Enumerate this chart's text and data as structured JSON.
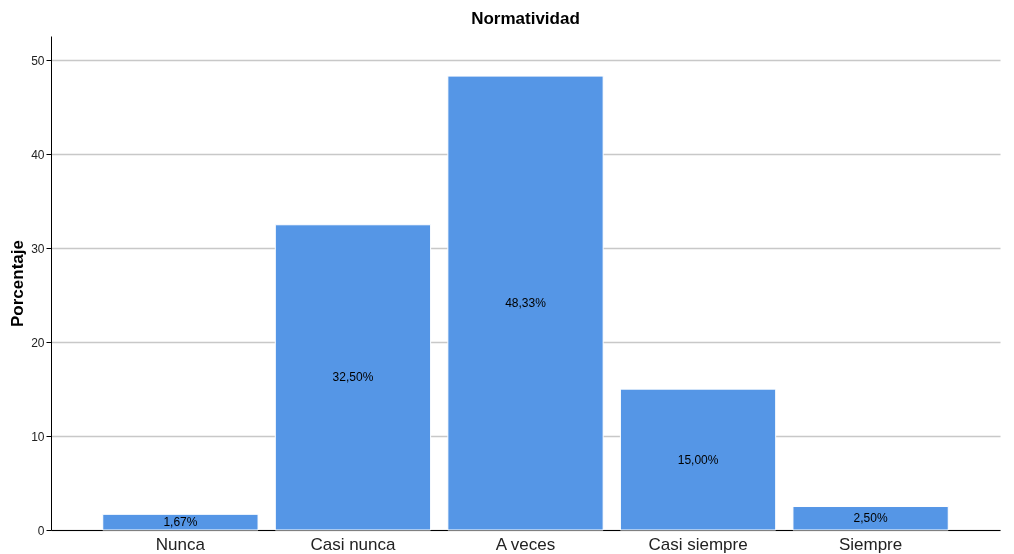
{
  "chart_data": {
    "type": "bar",
    "title": "Normatividad",
    "ylabel": "Porcentaje",
    "categories": [
      "Nunca",
      "Casi nunca",
      "A veces",
      "Casi siempre",
      "Siempre"
    ],
    "values": [
      1.67,
      32.5,
      48.33,
      15,
      2.5
    ],
    "value_labels": [
      "1,67%",
      "32,50%",
      "48,33%",
      "15,00%",
      "2,50%"
    ],
    "color": "#5596e6",
    "ylim": [
      0,
      52.6
    ],
    "yticks": [
      0,
      10,
      20,
      30,
      40,
      50
    ],
    "grid": "y"
  }
}
